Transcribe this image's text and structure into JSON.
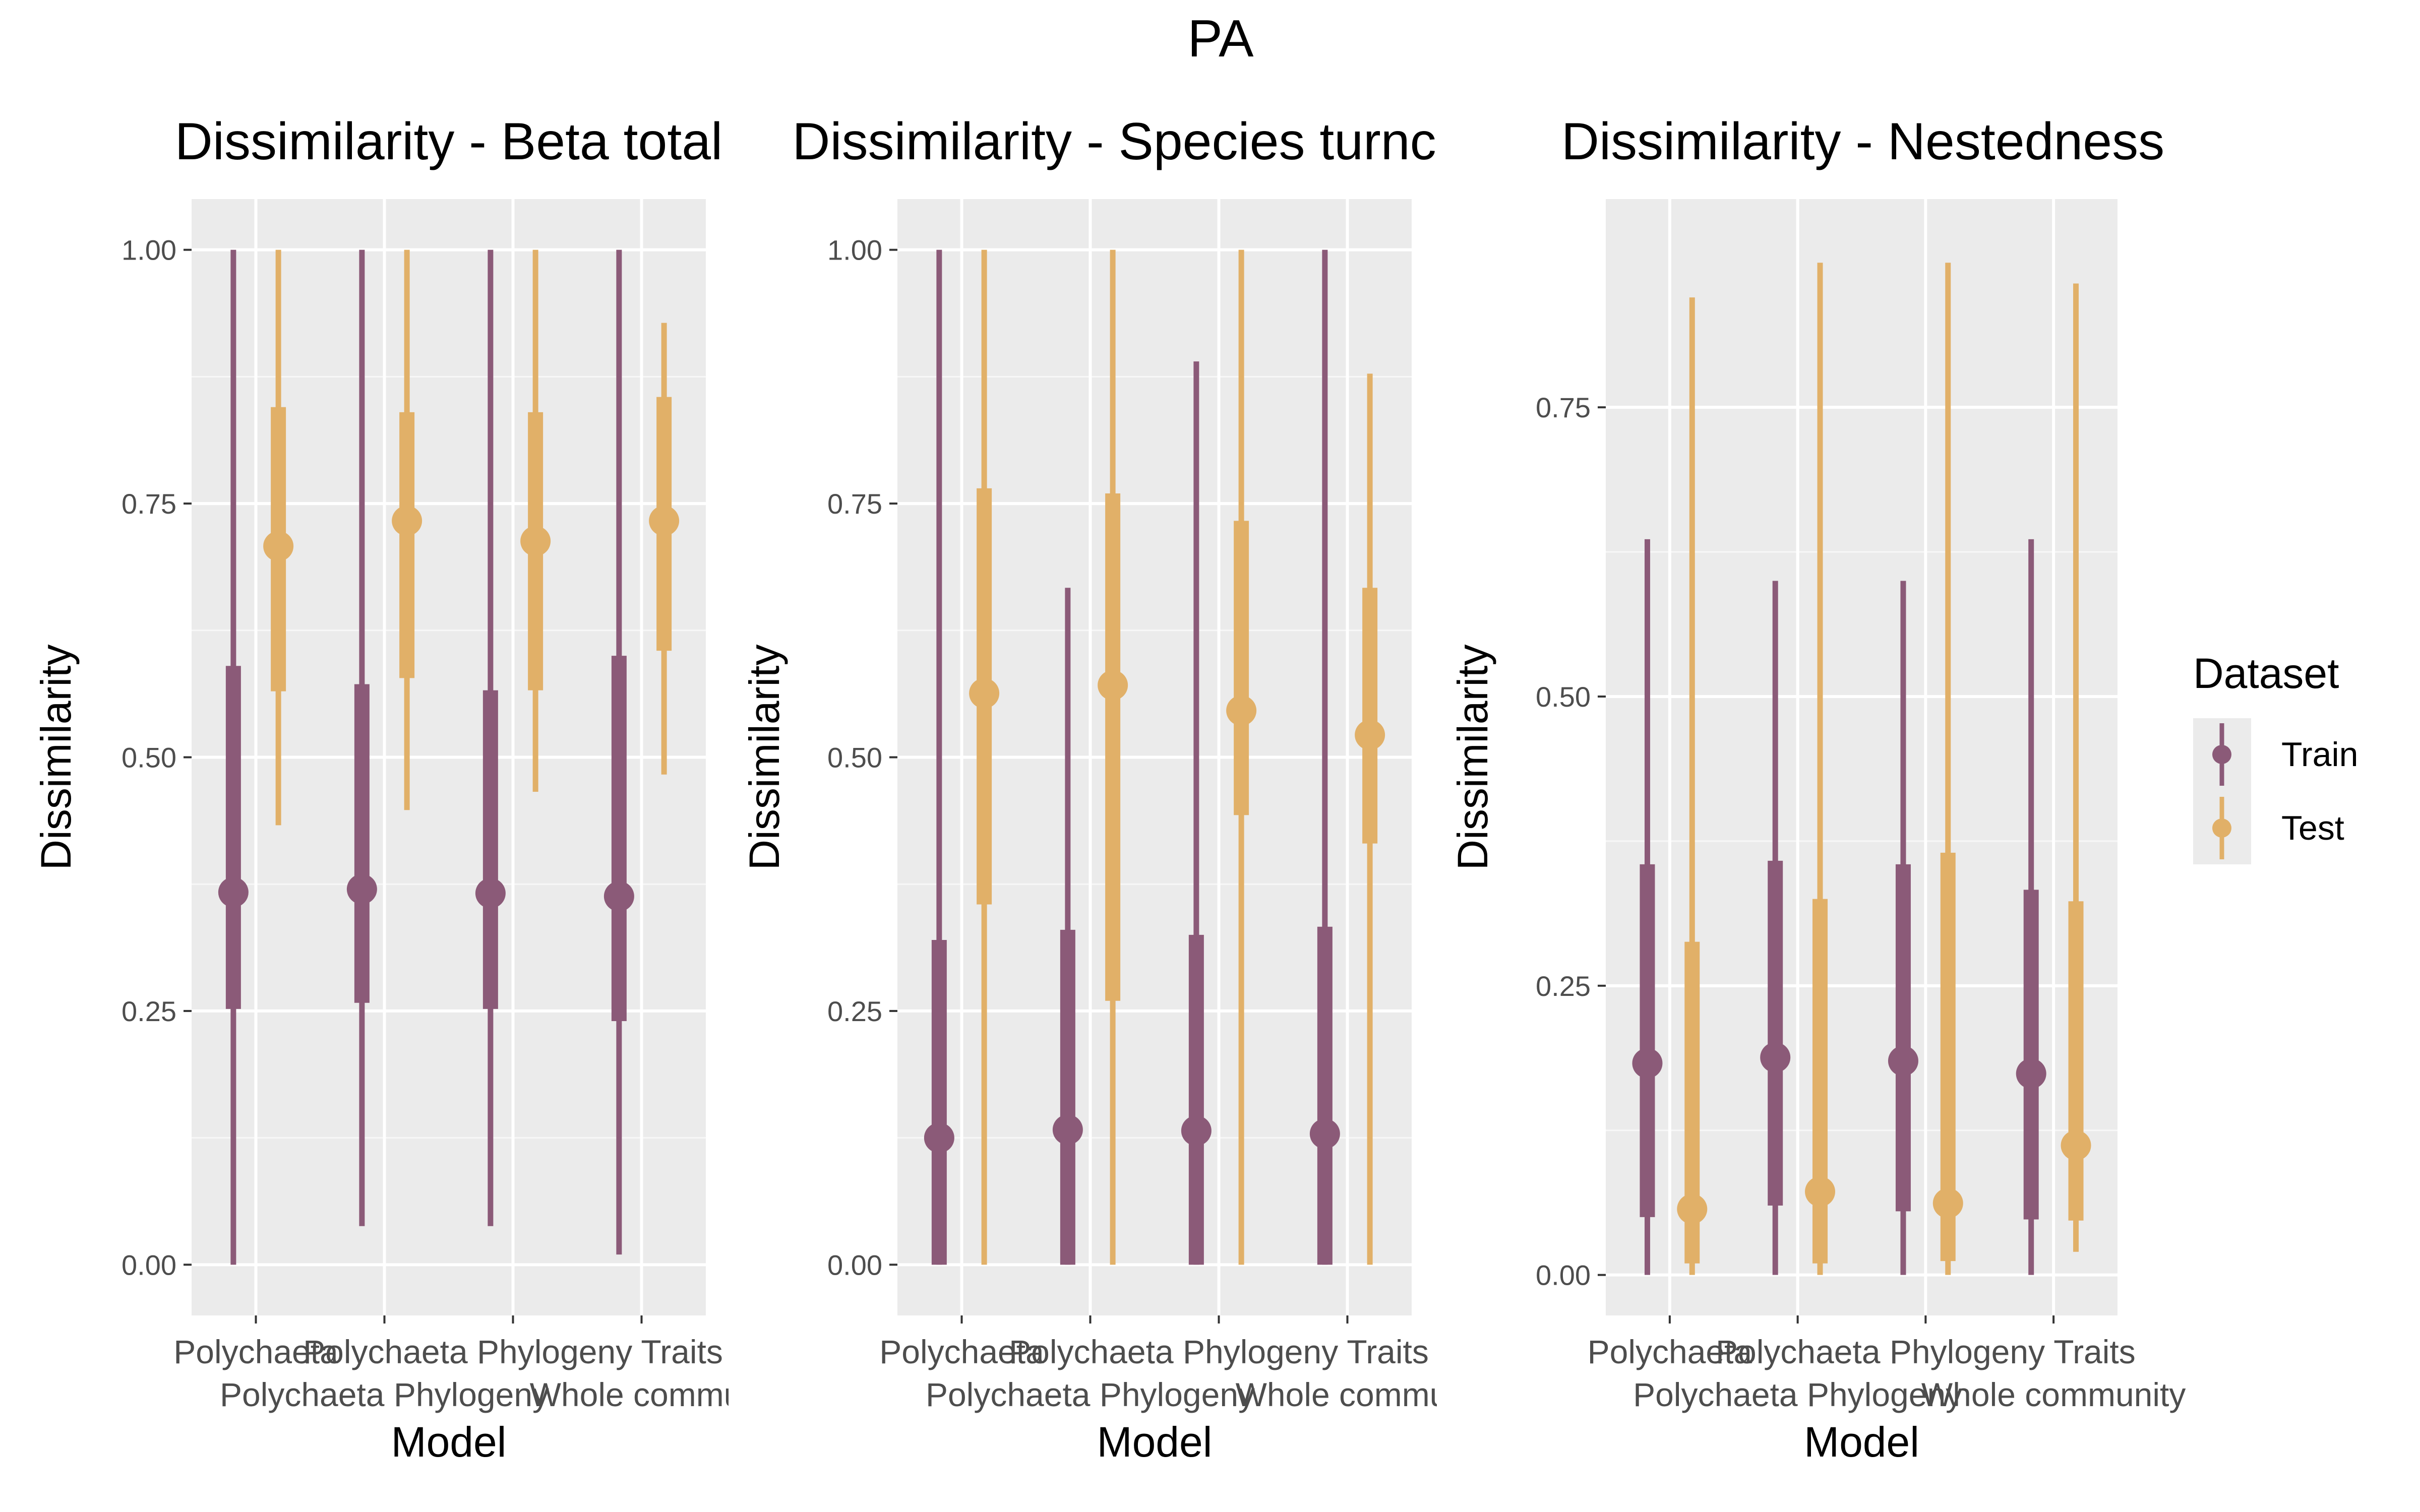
{
  "figure": {
    "title": "PA"
  },
  "legend": {
    "title": "Dataset",
    "position": "right",
    "items": [
      {
        "label": "Train",
        "color": "#8B5A78"
      },
      {
        "label": "Test",
        "color": "#E1B068"
      }
    ]
  },
  "chart_data": [
    {
      "type": "pointrange",
      "title": "Dissimilarity - Beta total",
      "xlabel": "Model",
      "ylabel": "Dissimilarity",
      "ylim": [
        -0.05,
        1.05
      ],
      "yticks": [
        0.0,
        0.25,
        0.5,
        0.75,
        1.0
      ],
      "ytick_labels": [
        "0.00",
        "0.25",
        "0.50",
        "0.75",
        "1.00"
      ],
      "grid": true,
      "categories": [
        "Polychaeta",
        "Polychaeta Phylogeny",
        "Polychaeta Phylogeny Traits",
        "Whole community"
      ],
      "x_tick_labels": [
        {
          "text": "Polychaeta",
          "row": 0
        },
        {
          "text": "Polychaeta Phylogeny",
          "row": 1
        },
        {
          "text": "Polychaeta Phylogeny Traits",
          "row": 0
        },
        {
          "text": "Whole commur",
          "row": 1
        }
      ],
      "series": [
        {
          "name": "Train",
          "median": [
            0.367,
            0.37,
            0.366,
            0.363
          ],
          "q_low": [
            0.252,
            0.258,
            0.252,
            0.24
          ],
          "q_high": [
            0.59,
            0.572,
            0.566,
            0.6
          ],
          "min": [
            0.0,
            0.038,
            0.038,
            0.01
          ],
          "max": [
            1.0,
            1.0,
            1.0,
            1.0
          ]
        },
        {
          "name": "Test",
          "median": [
            0.708,
            0.733,
            0.713,
            0.733
          ],
          "q_low": [
            0.565,
            0.578,
            0.566,
            0.605
          ],
          "q_high": [
            0.845,
            0.84,
            0.84,
            0.855
          ],
          "min": [
            0.433,
            0.448,
            0.466,
            0.483
          ],
          "max": [
            1.0,
            1.0,
            1.0,
            0.928
          ]
        }
      ]
    },
    {
      "type": "pointrange",
      "title": "Dissimilarity - Species turnc",
      "xlabel": "Model",
      "ylabel": "Dissimilarity",
      "ylim": [
        -0.05,
        1.05
      ],
      "yticks": [
        0.0,
        0.25,
        0.5,
        0.75,
        1.0
      ],
      "ytick_labels": [
        "0.00",
        "0.25",
        "0.50",
        "0.75",
        "1.00"
      ],
      "grid": true,
      "categories": [
        "Polychaeta",
        "Polychaeta Phylogeny",
        "Polychaeta Phylogeny Traits",
        "Whole community"
      ],
      "x_tick_labels": [
        {
          "text": "Polychaeta",
          "row": 0
        },
        {
          "text": "Polychaeta Phylogeny",
          "row": 1
        },
        {
          "text": "Polychaeta Phylogeny Traits",
          "row": 0
        },
        {
          "text": "Whole commur",
          "row": 1
        }
      ],
      "series": [
        {
          "name": "Train",
          "median": [
            0.125,
            0.133,
            0.132,
            0.129
          ],
          "q_low": [
            0.0,
            0.0,
            0.0,
            0.0
          ],
          "q_high": [
            0.32,
            0.33,
            0.325,
            0.333
          ],
          "min": [
            0.0,
            0.0,
            0.0,
            0.0
          ],
          "max": [
            1.0,
            0.667,
            0.89,
            1.0
          ]
        },
        {
          "name": "Test",
          "median": [
            0.563,
            0.571,
            0.546,
            0.522
          ],
          "q_low": [
            0.355,
            0.26,
            0.443,
            0.415
          ],
          "q_high": [
            0.765,
            0.76,
            0.733,
            0.667
          ],
          "min": [
            0.0,
            0.0,
            0.0,
            0.0
          ],
          "max": [
            1.0,
            1.0,
            1.0,
            0.878
          ]
        }
      ]
    },
    {
      "type": "pointrange",
      "title": "Dissimilarity - Nestedness",
      "xlabel": "Model",
      "ylabel": "Dissimilarity",
      "ylim": [
        -0.035,
        0.93
      ],
      "yticks": [
        0.0,
        0.25,
        0.5,
        0.75
      ],
      "ytick_labels": [
        "0.00",
        "0.25",
        "0.50",
        "0.75"
      ],
      "grid": true,
      "categories": [
        "Polychaeta",
        "Polychaeta Phylogeny",
        "Polychaeta Phylogeny Traits",
        "Whole community"
      ],
      "x_tick_labels": [
        {
          "text": "Polychaeta",
          "row": 0
        },
        {
          "text": "Polychaeta Phylogeny",
          "row": 1
        },
        {
          "text": "Polychaeta Phylogeny Traits",
          "row": 0
        },
        {
          "text": "Whole community",
          "row": 1
        }
      ],
      "series": [
        {
          "name": "Train",
          "median": [
            0.183,
            0.188,
            0.185,
            0.174
          ],
          "q_low": [
            0.05,
            0.06,
            0.055,
            0.048
          ],
          "q_high": [
            0.355,
            0.358,
            0.355,
            0.333
          ],
          "min": [
            0.0,
            0.0,
            0.0,
            0.0
          ],
          "max": [
            0.636,
            0.6,
            0.6,
            0.636
          ]
        },
        {
          "name": "Test",
          "median": [
            0.057,
            0.072,
            0.062,
            0.112
          ],
          "q_low": [
            0.01,
            0.01,
            0.012,
            0.047
          ],
          "q_high": [
            0.288,
            0.325,
            0.365,
            0.323
          ],
          "min": [
            0.0,
            0.0,
            0.0,
            0.02
          ],
          "max": [
            0.845,
            0.875,
            0.875,
            0.857
          ]
        }
      ]
    }
  ]
}
